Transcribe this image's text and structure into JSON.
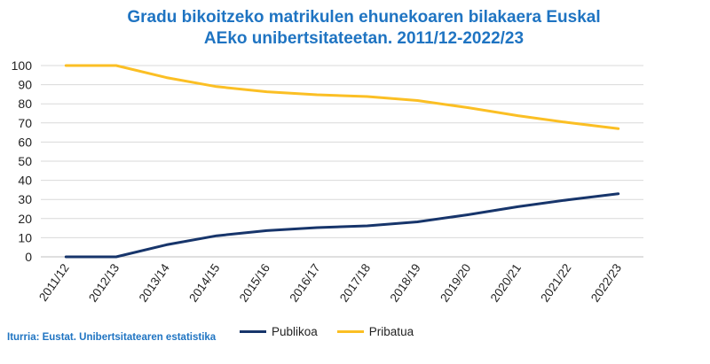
{
  "chart_data": {
    "type": "line",
    "title_lines": [
      "Gradu bikoitzeko matrikulen ehunekoaren bilakaera Euskal",
      "AEko unibertsitateetan. 2011/12-2022/23"
    ],
    "categories": [
      "2011/12",
      "2012/13",
      "2013/14",
      "2014/15",
      "2015/16",
      "2016/17",
      "2017/18",
      "2018/19",
      "2019/20",
      "2020/21",
      "2021/22",
      "2022/23"
    ],
    "ylim": [
      0,
      100
    ],
    "yticks": [
      "0",
      "10",
      "20",
      "30",
      "40",
      "50",
      "60",
      "70",
      "80",
      "90",
      "100"
    ],
    "grid": true,
    "legend_position": "bottom",
    "series": [
      {
        "name": "Publikoa",
        "color": "#17356b",
        "values": [
          0,
          0,
          6.3,
          11,
          13.7,
          15.3,
          16.2,
          18.3,
          22,
          26.2,
          29.8,
          33
        ]
      },
      {
        "name": "Pribatua",
        "color": "#fbbf24",
        "values": [
          100,
          100,
          93.7,
          89,
          86.3,
          84.7,
          83.8,
          81.7,
          78,
          73.8,
          70.2,
          67
        ]
      }
    ]
  },
  "source": "Iturria: Eustat. Unibertsitatearen estatistika"
}
